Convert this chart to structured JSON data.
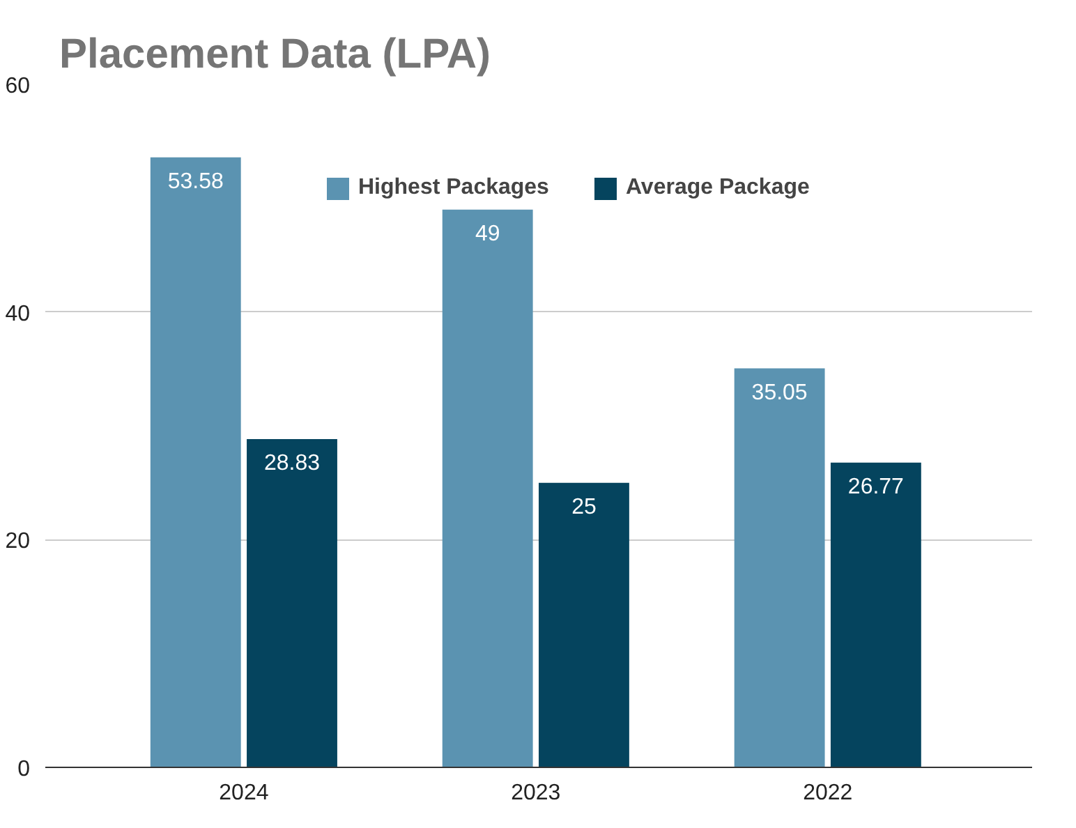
{
  "chart_data": {
    "type": "bar",
    "title": "Placement Data (LPA)",
    "categories": [
      "2024",
      "2023",
      "2022"
    ],
    "series": [
      {
        "name": "Highest Packages",
        "color": "#5b93b1",
        "values": [
          53.58,
          49,
          35.05
        ]
      },
      {
        "name": "Average Package",
        "color": "#05445e",
        "values": [
          28.83,
          25,
          26.77
        ]
      }
    ],
    "ylim": [
      0,
      60
    ],
    "yticks": [
      0,
      20,
      40,
      60
    ],
    "grid": "y",
    "legend": "top",
    "data_labels": true
  }
}
